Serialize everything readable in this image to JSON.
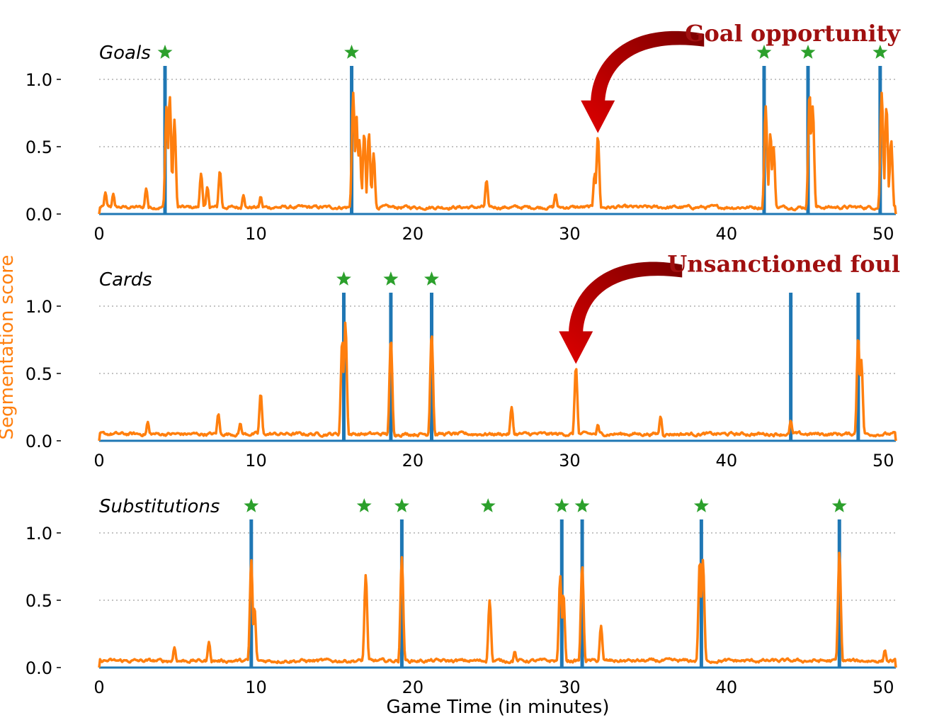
{
  "chart_data": {
    "type": "line",
    "xlabel": "Game Time (in minutes)",
    "ylabel": "Segmentation score",
    "xlim": [
      0,
      50.8
    ],
    "ylim": [
      0,
      1.2
    ],
    "xticks": [
      "0",
      "10",
      "20",
      "30",
      "40",
      "50"
    ],
    "yticks": [
      "0.0",
      "0.5",
      "1.0"
    ],
    "colors": {
      "ground_truth": "#1f77b4",
      "score": "#ff7f0e",
      "star": "#2ca02c",
      "annotation_text": "#a01010",
      "arrow": "#cc0000"
    },
    "panels": [
      {
        "title": "Goals",
        "ground_truth_times": [
          4.2,
          16.1,
          42.4,
          45.2,
          49.8
        ],
        "star_times": [
          4.2,
          16.1,
          42.4,
          45.2,
          49.8
        ],
        "peaks": [
          [
            4.3,
            0.8
          ],
          [
            4.5,
            0.88
          ],
          [
            4.8,
            0.7
          ],
          [
            6.5,
            0.3
          ],
          [
            6.9,
            0.2
          ],
          [
            7.7,
            0.32
          ],
          [
            3.0,
            0.19
          ],
          [
            0.4,
            0.16
          ],
          [
            0.9,
            0.15
          ],
          [
            9.2,
            0.14
          ],
          [
            10.3,
            0.13
          ],
          [
            16.2,
            0.9
          ],
          [
            16.4,
            0.75
          ],
          [
            16.6,
            0.55
          ],
          [
            16.9,
            0.6
          ],
          [
            17.2,
            0.6
          ],
          [
            17.5,
            0.45
          ],
          [
            24.7,
            0.25
          ],
          [
            29.1,
            0.15
          ],
          [
            31.8,
            0.58
          ],
          [
            31.6,
            0.3
          ],
          [
            42.5,
            0.8
          ],
          [
            42.8,
            0.6
          ],
          [
            43.0,
            0.5
          ],
          [
            45.3,
            0.9
          ],
          [
            45.5,
            0.8
          ],
          [
            49.9,
            0.9
          ],
          [
            50.2,
            0.8
          ],
          [
            50.5,
            0.55
          ]
        ]
      },
      {
        "title": "Cards",
        "ground_truth_times": [
          15.6,
          18.6,
          21.2,
          44.1,
          48.4
        ],
        "star_times": [
          15.6,
          18.6,
          21.2
        ],
        "peaks": [
          [
            3.1,
            0.14
          ],
          [
            7.6,
            0.2
          ],
          [
            9.0,
            0.13
          ],
          [
            10.3,
            0.35
          ],
          [
            15.5,
            0.75
          ],
          [
            15.7,
            0.88
          ],
          [
            18.6,
            0.76
          ],
          [
            21.2,
            0.8
          ],
          [
            26.3,
            0.25
          ],
          [
            30.4,
            0.55
          ],
          [
            31.8,
            0.12
          ],
          [
            35.8,
            0.18
          ],
          [
            44.1,
            0.15
          ],
          [
            48.4,
            0.78
          ],
          [
            48.6,
            0.6
          ]
        ]
      },
      {
        "title": "Substitutions",
        "ground_truth_times": [
          9.7,
          19.3,
          29.5,
          30.8,
          38.4,
          47.2
        ],
        "star_times": [
          9.7,
          16.9,
          19.3,
          24.8,
          29.5,
          30.8,
          38.4,
          47.2
        ],
        "peaks": [
          [
            4.8,
            0.15
          ],
          [
            7.0,
            0.19
          ],
          [
            9.7,
            0.8
          ],
          [
            9.9,
            0.45
          ],
          [
            17.0,
            0.69
          ],
          [
            19.3,
            0.82
          ],
          [
            24.9,
            0.5
          ],
          [
            26.5,
            0.12
          ],
          [
            29.4,
            0.68
          ],
          [
            29.6,
            0.55
          ],
          [
            30.8,
            0.76
          ],
          [
            32.0,
            0.31
          ],
          [
            38.3,
            0.8
          ],
          [
            38.5,
            0.8
          ],
          [
            47.2,
            0.86
          ],
          [
            50.1,
            0.13
          ]
        ]
      }
    ],
    "annotations": [
      {
        "panel": 0,
        "text": "Goal opportunity",
        "target_time": 31.8,
        "target_value": 0.58
      },
      {
        "panel": 1,
        "text": "Unsanctioned foul",
        "target_time": 30.4,
        "target_value": 0.55
      }
    ]
  }
}
